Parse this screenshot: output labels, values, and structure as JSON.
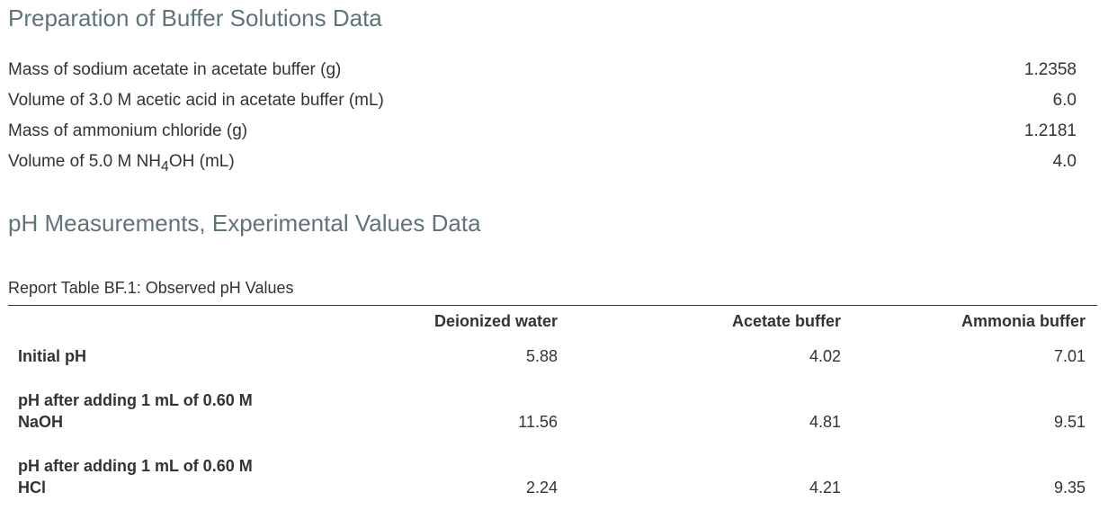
{
  "section1": {
    "title": "Preparation of Buffer Solutions Data",
    "rows": [
      {
        "label": "Mass of sodium acetate in acetate buffer (g)",
        "value": "1.2358"
      },
      {
        "label": "Volume of 3.0 M acetic acid in acetate buffer (mL)",
        "value": "6.0"
      },
      {
        "label": "Mass of ammonium chloride (g)",
        "value": "1.2181"
      },
      {
        "label_prefix": "Volume of 5.0 M NH",
        "label_sub": "4",
        "label_suffix": "OH (mL)",
        "value": "4.0"
      }
    ]
  },
  "section2": {
    "title": "pH Measurements, Experimental Values Data",
    "table_caption": "Report Table BF.1: Observed pH Values",
    "columns": [
      "Deionized water",
      "Acetate buffer",
      "Ammonia buffer"
    ],
    "rows": [
      {
        "label_line1": "Initial pH",
        "label_line2": "",
        "values": [
          "5.88",
          "4.02",
          "7.01"
        ]
      },
      {
        "label_line1": "pH after adding 1 mL of 0.60 M",
        "label_line2": "NaOH",
        "values": [
          "11.56",
          "4.81",
          "9.51"
        ]
      },
      {
        "label_line1": "pH after adding 1 mL of 0.60 M",
        "label_line2": "HCl",
        "values": [
          "2.24",
          "4.21",
          "9.35"
        ]
      }
    ]
  }
}
